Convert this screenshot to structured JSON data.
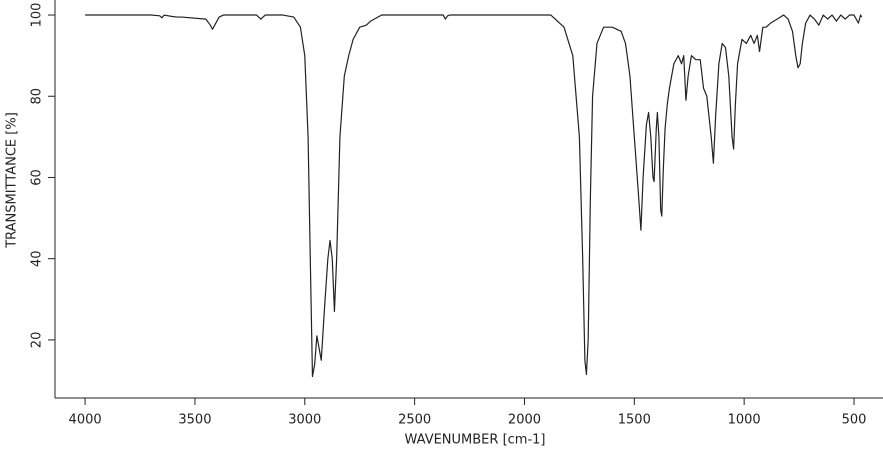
{
  "chart_data": {
    "type": "line",
    "x_label": "WAVENUMBER [cm-1]",
    "y_label": "TRANSMITTANCE [%]",
    "color": "#222222",
    "x": [
      4000,
      3700,
      3660,
      3650,
      3640,
      3600,
      3580,
      3560,
      3450,
      3430,
      3420,
      3410,
      3390,
      3370,
      3220,
      3200,
      3180,
      3100,
      3050,
      3020,
      3000,
      2985,
      2975,
      2965,
      2955,
      2945,
      2935,
      2925,
      2910,
      2895,
      2885,
      2875,
      2865,
      2855,
      2840,
      2820,
      2800,
      2780,
      2750,
      2720,
      2700,
      2650,
      2370,
      2360,
      2350,
      2340,
      1880,
      1860,
      1820,
      1780,
      1750,
      1735,
      1725,
      1718,
      1710,
      1700,
      1690,
      1670,
      1640,
      1600,
      1560,
      1540,
      1520,
      1500,
      1480,
      1470,
      1460,
      1445,
      1435,
      1425,
      1415,
      1410,
      1400,
      1395,
      1388,
      1380,
      1375,
      1368,
      1360,
      1350,
      1340,
      1320,
      1300,
      1285,
      1275,
      1265,
      1255,
      1240,
      1220,
      1200,
      1185,
      1170,
      1160,
      1150,
      1140,
      1130,
      1115,
      1100,
      1085,
      1070,
      1055,
      1048,
      1040,
      1030,
      1010,
      990,
      970,
      955,
      940,
      930,
      915,
      900,
      880,
      850,
      820,
      800,
      780,
      765,
      755,
      745,
      735,
      720,
      700,
      680,
      660,
      640,
      620,
      600,
      580,
      560,
      540,
      520,
      500,
      480,
      470,
      465
    ],
    "values": [
      100,
      100,
      99.8,
      99.3,
      100,
      99.6,
      99.5,
      99.5,
      99,
      97.5,
      96.5,
      97.5,
      99.5,
      100,
      100,
      99,
      100,
      100,
      99.5,
      97,
      90,
      70,
      40,
      11,
      14,
      21,
      18,
      15,
      28,
      40,
      44.5,
      40,
      27,
      40,
      70,
      85,
      90,
      94,
      97,
      97.5,
      98.5,
      100,
      100,
      99,
      99.8,
      100,
      100,
      99,
      97,
      90,
      70,
      40,
      15,
      11.5,
      20,
      55,
      80,
      93,
      97,
      97,
      96,
      93,
      85,
      70,
      55,
      47,
      60,
      73,
      76,
      70,
      60,
      59,
      72,
      76,
      70,
      52,
      50.5,
      62,
      72,
      78,
      82,
      88,
      90,
      88,
      90,
      79,
      85,
      90,
      89,
      89,
      82,
      80,
      75,
      70,
      63.5,
      75,
      88,
      93,
      92,
      85,
      70,
      67,
      78,
      88,
      94,
      93,
      95,
      93,
      95,
      91,
      97,
      97,
      98,
      99,
      100,
      99,
      96,
      90,
      87,
      88,
      93,
      98,
      100,
      99,
      97.5,
      100,
      99,
      100,
      98.5,
      100,
      99,
      100,
      100,
      98,
      100,
      99.5
    ],
    "xlim": [
      4137,
      368
    ],
    "ylim": [
      5.7,
      103.7
    ],
    "xticks": [
      4000,
      3500,
      3000,
      2500,
      2000,
      1500,
      1000,
      500
    ],
    "yticks": [
      20,
      40,
      60,
      80,
      100
    ]
  }
}
